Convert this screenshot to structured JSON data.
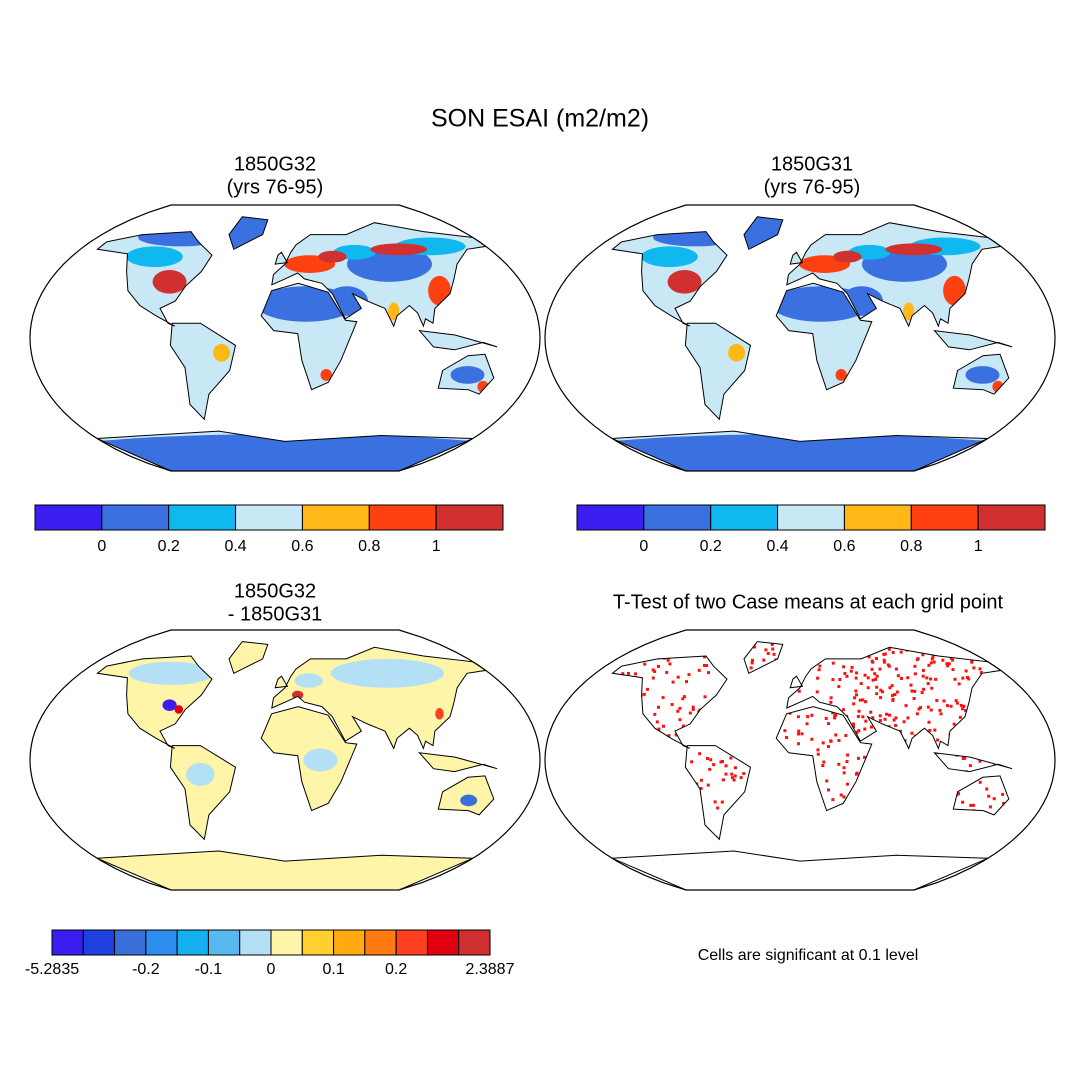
{
  "title": "SON ESAI (m2/m2)",
  "panels": [
    {
      "title": [
        "1850G32",
        "(yrs 76-95)"
      ]
    },
    {
      "title": [
        "1850G31",
        "(yrs 76-95)"
      ]
    },
    {
      "title": [
        "1850G32",
        "- 1850G31"
      ]
    },
    {
      "title": [
        "T-Test of two Case means at each grid point"
      ]
    }
  ],
  "colorbars": [
    {
      "colors": [
        "#3b1ff0",
        "#3a70e0",
        "#10b8f0",
        "#c8e8f5",
        "#ffb818",
        "#ff4010",
        "#d03030"
      ],
      "labels": [
        "0",
        "0.2",
        "0.4",
        "0.6",
        "0.8",
        "1"
      ]
    },
    {
      "colors": [
        "#3b1ff0",
        "#3a70e0",
        "#10b8f0",
        "#c8e8f5",
        "#ffb818",
        "#ff4010",
        "#d03030"
      ],
      "labels": [
        "0",
        "0.2",
        "0.4",
        "0.6",
        "0.8",
        "1"
      ]
    },
    {
      "colors": [
        "#3a1ef0",
        "#1f3fe0",
        "#3a6ed8",
        "#2d8ef0",
        "#15b0f0",
        "#5ab8f0",
        "#b3e0f5",
        "#fff5a8",
        "#ffd030",
        "#ffaa10",
        "#ff7a10",
        "#ff4020",
        "#e00010",
        "#d03030"
      ],
      "labels": [
        "-5.2835",
        "-0.2",
        "-0.1",
        "0",
        "0.1",
        "0.2",
        "2.3887"
      ]
    }
  ],
  "note": "Cells are significant at 0.1 level"
}
